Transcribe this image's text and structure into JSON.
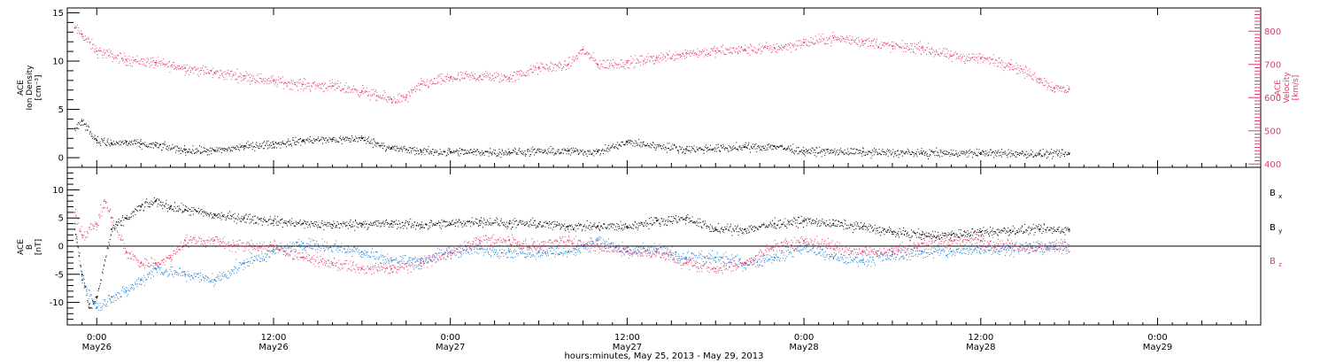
{
  "colors": {
    "black": "#000000",
    "pink": "#e8386a",
    "blue": "#1e7fd6"
  },
  "xlabel": "hours:minutes, May 25, 2013 - May 29, 2013",
  "x_ticks": [
    {
      "hour": 24,
      "time": "0:00",
      "date": "May26"
    },
    {
      "hour": 36,
      "time": "12:00",
      "date": "May26"
    },
    {
      "hour": 48,
      "time": "0:00",
      "date": "May27"
    },
    {
      "hour": 60,
      "time": "12:00",
      "date": "May27"
    },
    {
      "hour": 72,
      "time": "0:00",
      "date": "May28"
    },
    {
      "hour": 84,
      "time": "12:00",
      "date": "May28"
    },
    {
      "hour": 96,
      "time": "0:00",
      "date": "May29"
    }
  ],
  "top_panel": {
    "left_label": [
      "ACE",
      "Ion Density",
      "[cm⁻³]"
    ],
    "right_label": [
      "ACE",
      "Velocity",
      "[km/s]"
    ],
    "left_ticks": [
      "0",
      "5",
      "10",
      "15"
    ],
    "right_ticks": [
      "400",
      "500",
      "600",
      "700",
      "800"
    ]
  },
  "bottom_panel": {
    "left_label": [
      "ACE",
      "B",
      "[nT]"
    ],
    "left_ticks": [
      "-10",
      "-5",
      "0",
      "5",
      "10"
    ],
    "legend": [
      "Bx",
      "By",
      "Bz"
    ]
  },
  "chart_data": [
    {
      "type": "scatter",
      "panel": "top",
      "x_unit": "hours since May 25, 2013 00:00",
      "xlim": [
        22,
        103
      ],
      "ylim_left": [
        -1,
        15.5
      ],
      "ylim_right": [
        390,
        870
      ],
      "ylabel_left": "ACE Ion Density [cm-3]",
      "ylabel_right": "ACE Velocity [km/s]",
      "series": [
        {
          "name": "Density",
          "axis": "left",
          "color": "#000000",
          "x": [
            22.5,
            23,
            24,
            25,
            26,
            27,
            28,
            30,
            32,
            34,
            36,
            38,
            40,
            42,
            44,
            46,
            48,
            52,
            56,
            58,
            60,
            64,
            68,
            70,
            72,
            76,
            80,
            84,
            88,
            90
          ],
          "y": [
            3.0,
            3.8,
            1.8,
            1.5,
            1.6,
            1.4,
            1.3,
            0.8,
            0.7,
            1.2,
            1.4,
            1.8,
            1.9,
            2.0,
            1.0,
            0.7,
            0.6,
            0.6,
            0.7,
            0.6,
            1.6,
            0.9,
            1.1,
            1.2,
            0.7,
            0.6,
            0.5,
            0.5,
            0.4,
            0.4
          ]
        },
        {
          "name": "Velocity",
          "axis": "right",
          "color": "#e8386a",
          "x": [
            22.5,
            23,
            24,
            26,
            28,
            30,
            32,
            34,
            36,
            38,
            40,
            42,
            43,
            44,
            45,
            46,
            48,
            50,
            52,
            54,
            56,
            57,
            58,
            60,
            62,
            64,
            66,
            68,
            70,
            72,
            74,
            76,
            78,
            80,
            82,
            84,
            86,
            88,
            89,
            90
          ],
          "y": [
            810,
            790,
            740,
            715,
            705,
            690,
            675,
            665,
            650,
            640,
            635,
            620,
            605,
            595,
            600,
            640,
            660,
            665,
            660,
            690,
            700,
            745,
            700,
            705,
            720,
            735,
            740,
            745,
            750,
            765,
            780,
            770,
            755,
            750,
            725,
            720,
            700,
            655,
            630,
            625
          ]
        }
      ]
    },
    {
      "type": "scatter",
      "panel": "bottom",
      "x_unit": "hours since May 25, 2013 00:00",
      "xlim": [
        22,
        103
      ],
      "ylim": [
        -14,
        14
      ],
      "ylabel": "ACE B [nT]",
      "series": [
        {
          "name": "Bx",
          "color": "#000000",
          "x": [
            22.5,
            23,
            23.5,
            24,
            25,
            26,
            27,
            28,
            29,
            30,
            32,
            34,
            36,
            38,
            40,
            42,
            44,
            46,
            48,
            50,
            52,
            54,
            56,
            58,
            60,
            62,
            64,
            66,
            68,
            70,
            72,
            74,
            76,
            78,
            80,
            82,
            84,
            86,
            88,
            90
          ],
          "y": [
            3,
            -5,
            -11,
            -9,
            3,
            5,
            7,
            8,
            7,
            6.5,
            5.5,
            5,
            4.5,
            4,
            3.8,
            4,
            4,
            3.8,
            4,
            4.5,
            4,
            4,
            3.5,
            3.5,
            3.5,
            4.5,
            5,
            3,
            3,
            4,
            4.5,
            4,
            3.5,
            2.5,
            2,
            2,
            2.5,
            2.8,
            3,
            3
          ]
        },
        {
          "name": "By",
          "color": "#1e7fd6",
          "x": [
            22.5,
            23,
            24,
            25,
            26,
            27,
            28,
            30,
            32,
            34,
            36,
            38,
            40,
            42,
            44,
            46,
            48,
            50,
            52,
            54,
            56,
            58,
            60,
            62,
            64,
            66,
            68,
            70,
            72,
            74,
            76,
            78,
            80,
            82,
            84,
            86,
            88,
            90
          ],
          "y": [
            4,
            -6,
            -11,
            -9,
            -8,
            -6,
            -4,
            -5,
            -6,
            -3,
            -1,
            0.5,
            0,
            -1,
            -2.5,
            -2.5,
            -1,
            -0.5,
            -1,
            -1,
            -1,
            1,
            -1,
            -0.5,
            -2,
            -2,
            -3,
            -2,
            0,
            -2,
            -2.5,
            -1.5,
            -1,
            -1,
            -0.5,
            -0.3,
            -0.2,
            0
          ]
        },
        {
          "name": "Bz",
          "color": "#e8386a",
          "x": [
            22.5,
            23,
            24,
            24.5,
            25,
            26,
            27,
            28,
            29,
            30,
            32,
            34,
            36,
            38,
            40,
            42,
            44,
            46,
            48,
            50,
            52,
            54,
            56,
            58,
            60,
            62,
            64,
            66,
            68,
            70,
            72,
            74,
            76,
            78,
            80,
            82,
            84,
            86,
            88,
            90
          ],
          "y": [
            6,
            2,
            4,
            8,
            5,
            -1,
            -3,
            -3,
            -2,
            1,
            1,
            0,
            0,
            -2,
            -3,
            -4,
            -4,
            -3,
            -1,
            1,
            1,
            0,
            1,
            0,
            -1,
            -1,
            -3,
            -4,
            -3,
            0,
            1,
            0,
            -1,
            -1,
            0.5,
            1,
            1,
            0,
            0,
            0
          ]
        }
      ]
    }
  ]
}
